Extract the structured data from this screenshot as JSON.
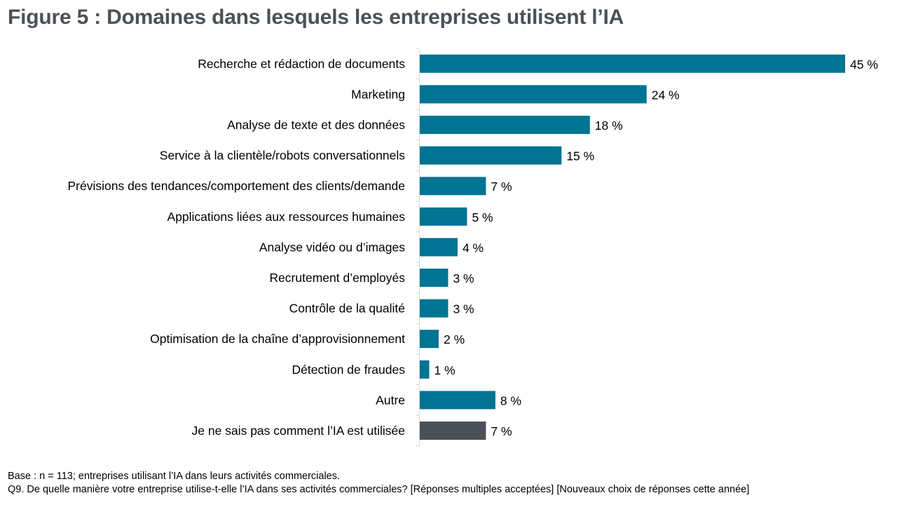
{
  "title": "Figure 5 : Domaines dans lesquels les entreprises utilisent l’IA",
  "footer": {
    "base": "Base : n = 113; entreprises utilisant l’IA dans leurs activités commerciales.",
    "question": "Q9. De quelle manière votre entreprise utilise-t-elle l’IA dans ses activités commerciales? [Réponses multiples acceptées] [Nouveaux choix de réponses cette année]"
  },
  "chart_data": {
    "type": "bar",
    "orientation": "horizontal",
    "title": "Figure 5 : Domaines dans lesquels les entreprises utilisent l’IA",
    "xlabel": "",
    "ylabel": "",
    "unit": "%",
    "xlim": [
      0,
      45
    ],
    "grid": false,
    "legend": "none",
    "categories": [
      "Recherche et rédaction de documents",
      "Marketing",
      "Analyse de texte et des données",
      "Service à la clientèle/robots conversationnels",
      "Prévisions des tendances/comportement des clients/demande",
      "Applications liées aux ressources humaines",
      "Analyse vidéo ou d’images",
      "Recrutement d’employés",
      "Contrôle de la qualité",
      "Optimisation de la chaîne d’approvisionnement",
      "Détection de fraudes",
      "Autre",
      "Je ne sais pas comment l’IA est utilisée"
    ],
    "values": [
      45,
      24,
      18,
      15,
      7,
      5,
      4,
      3,
      3,
      2,
      1,
      8,
      7
    ],
    "data_labels": [
      "45 %",
      "24 %",
      "18 %",
      "15 %",
      "7 %",
      "5 %",
      "4 %",
      "3 %",
      "3 %",
      "2 %",
      "1 %",
      "8 %",
      "7 %"
    ],
    "colors": {
      "primary": "#007493",
      "secondary": "#4a5157",
      "axis": "#d9d9d9"
    },
    "bar_colors": [
      "primary",
      "primary",
      "primary",
      "primary",
      "primary",
      "primary",
      "primary",
      "primary",
      "primary",
      "primary",
      "primary",
      "primary",
      "secondary"
    ]
  }
}
